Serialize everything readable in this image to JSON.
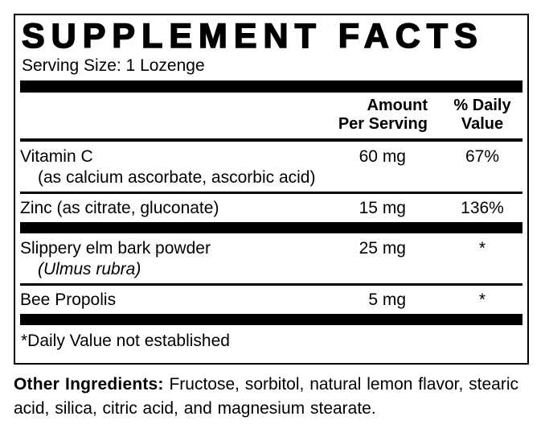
{
  "label": {
    "title": "SUPPLEMENT FACTS",
    "serving_size": "Serving Size: 1 Lozenge",
    "columns": {
      "amount": "Amount\nPer Serving",
      "daily_value": "% Daily\nValue"
    },
    "rows": [
      {
        "name": "Vitamin C",
        "sub": "(as calcium ascorbate, ascorbic acid)",
        "amount": "60 mg",
        "daily_value": "67%"
      },
      {
        "name": "Zinc (as citrate, gluconate)",
        "amount": "15 mg",
        "daily_value": "136%"
      },
      {
        "name": "Slippery elm bark powder",
        "sub": "(Ulmus rubra)",
        "amount": "25 mg",
        "daily_value": "*"
      },
      {
        "name": "Bee Propolis",
        "amount": "5 mg",
        "daily_value": "*"
      }
    ],
    "footnote": "*Daily Value not established"
  },
  "other_ingredients": {
    "label": "Other Ingredients:",
    "text": "Fructose, sorbitol, natural lemon flavor, stearic acid, silica, citric acid,  and magnesium stearate."
  },
  "colors": {
    "ink": "#000000",
    "background": "#ffffff"
  }
}
